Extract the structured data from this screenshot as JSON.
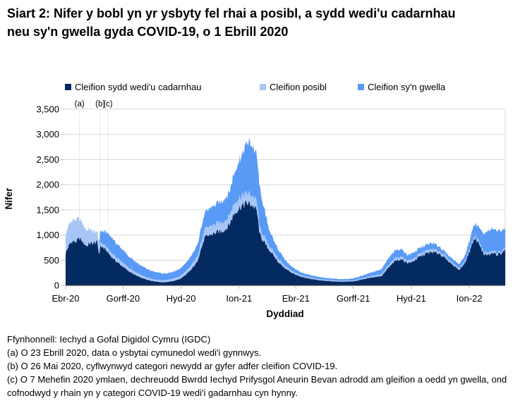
{
  "title": "Siart 2: Nifer y bobl yn yr ysbyty fel rhai a posibl, a sydd wedi'u cadarnhau neu sy'n gwella gyda COVID-19, o 1 Ebrill 2020",
  "legend": [
    {
      "label": "Cleifion sydd wedi'u cadarnhau",
      "color": "#042A62"
    },
    {
      "label": "Cleifion posibl",
      "color": "#A8C6F5"
    },
    {
      "label": "Cleifion sy'n gwella",
      "color": "#589AF6"
    }
  ],
  "chart_data": {
    "type": "area",
    "stacked": true,
    "title": "Siart 2: Nifer y bobl yn yr ysbyty fel rhai a posibl, a sydd wedi'u cadarnhau neu sy'n gwella gyda COVID-19, o 1 Ebrill 2020",
    "xlabel": "Dyddiad",
    "ylabel": "Nifer",
    "ylim": [
      0,
      3500
    ],
    "grid": true,
    "legend_position": "top",
    "x_start_date": "2020-04-01",
    "x_end_date": "2022-02-26",
    "x_max_day": 697,
    "y_tick_labels": [
      "0",
      "500",
      "1,000",
      "1,500",
      "2,000",
      "2,500",
      "3,000",
      "3,500"
    ],
    "x_ticks": [
      {
        "day": 0,
        "label": "Ebr-20"
      },
      {
        "day": 91,
        "label": "Gorff-20"
      },
      {
        "day": 183,
        "label": "Hyd-20"
      },
      {
        "day": 275,
        "label": "Ion-21"
      },
      {
        "day": 365,
        "label": "Ebr-21"
      },
      {
        "day": 456,
        "label": "Gorff-21"
      },
      {
        "day": 548,
        "label": "Hyd-21"
      },
      {
        "day": 640,
        "label": "Ion-22"
      }
    ],
    "annotations": [
      {
        "label": "(a)",
        "day": 22,
        "date": "2020-04-23"
      },
      {
        "label": "(b)",
        "day": 55,
        "date": "2020-05-26"
      },
      {
        "label": "(c)",
        "day": 67,
        "date": "2020-06-07"
      }
    ],
    "sample_days": [
      0,
      4,
      8,
      12,
      16,
      19,
      22,
      26,
      30,
      34,
      38,
      42,
      46,
      50,
      53,
      55,
      58,
      61,
      64,
      67,
      71,
      75,
      80,
      85,
      91,
      97,
      104,
      111,
      118,
      122,
      130,
      139,
      148,
      153,
      160,
      168,
      176,
      183,
      190,
      197,
      204,
      208,
      214,
      221,
      228,
      235,
      241,
      248,
      254,
      260,
      266,
      271,
      276,
      281,
      285,
      288,
      293,
      298,
      303,
      308,
      315,
      322,
      329,
      337,
      344,
      351,
      359,
      365,
      372,
      380,
      389,
      397,
      407,
      417,
      426,
      436,
      446,
      456,
      466,
      476,
      487,
      494,
      501,
      512,
      523,
      532,
      542,
      549,
      560,
      571,
      581,
      593,
      602,
      613,
      624,
      633,
      641,
      646,
      650,
      656,
      663,
      670,
      677,
      684,
      690,
      697
    ],
    "series": [
      {
        "name": "Cleifion sydd wedi'u cadarnhau",
        "color": "#042A62",
        "values": [
          640,
          760,
          850,
          880,
          860,
          900,
          935,
          880,
          820,
          780,
          840,
          830,
          850,
          860,
          620,
          780,
          760,
          730,
          700,
          660,
          590,
          540,
          480,
          430,
          370,
          310,
          250,
          200,
          160,
          140,
          110,
          85,
          70,
          62,
          68,
          80,
          105,
          140,
          205,
          280,
          390,
          450,
          700,
          950,
          1000,
          1030,
          1060,
          1080,
          1120,
          1220,
          1400,
          1480,
          1550,
          1590,
          1620,
          1635,
          1615,
          1570,
          1490,
          1000,
          850,
          720,
          600,
          470,
          380,
          310,
          250,
          210,
          170,
          150,
          130,
          110,
          95,
          85,
          78,
          72,
          75,
          82,
          105,
          135,
          160,
          175,
          185,
          350,
          490,
          520,
          450,
          460,
          560,
          630,
          660,
          630,
          535,
          420,
          305,
          445,
          700,
          870,
          930,
          800,
          620,
          600,
          640,
          610,
          630,
          700
        ]
      },
      {
        "name": "Cleifion posibl",
        "color": "#A8C6F5",
        "values": [
          380,
          400,
          410,
          420,
          430,
          420,
          395,
          370,
          340,
          310,
          280,
          250,
          220,
          170,
          250,
          70,
          65,
          70,
          70,
          75,
          80,
          80,
          80,
          80,
          80,
          70,
          65,
          60,
          55,
          50,
          45,
          40,
          40,
          38,
          40,
          45,
          50,
          60,
          70,
          80,
          95,
          100,
          130,
          160,
          170,
          175,
          180,
          180,
          185,
          185,
          195,
          200,
          200,
          200,
          200,
          195,
          190,
          185,
          180,
          130,
          110,
          90,
          80,
          70,
          60,
          50,
          40,
          35,
          30,
          28,
          25,
          22,
          20,
          20,
          18,
          18,
          18,
          20,
          22,
          25,
          30,
          35,
          40,
          50,
          55,
          55,
          50,
          50,
          50,
          55,
          55,
          50,
          45,
          40,
          35,
          40,
          45,
          50,
          55,
          50,
          45,
          45,
          45,
          40,
          40,
          40
        ]
      },
      {
        "name": "Cleifion sy'n gwella",
        "color": "#589AF6",
        "values": [
          0,
          0,
          0,
          0,
          0,
          0,
          0,
          0,
          0,
          0,
          0,
          0,
          0,
          0,
          0,
          230,
          245,
          260,
          280,
          290,
          310,
          300,
          280,
          265,
          250,
          235,
          220,
          205,
          190,
          185,
          165,
          150,
          140,
          135,
          130,
          135,
          140,
          150,
          160,
          180,
          205,
          220,
          280,
          320,
          350,
          375,
          400,
          420,
          445,
          475,
          600,
          670,
          750,
          850,
          950,
          1020,
          1015,
          975,
          920,
          770,
          530,
          330,
          240,
          180,
          140,
          100,
          80,
          70,
          60,
          52,
          50,
          45,
          40,
          38,
          35,
          32,
          33,
          38,
          48,
          60,
          75,
          88,
          100,
          135,
          155,
          150,
          105,
          120,
          120,
          115,
          125,
          90,
          75,
          75,
          80,
          100,
          180,
          230,
          235,
          280,
          360,
          430,
          450,
          440,
          420,
          380
        ]
      }
    ]
  },
  "footnotes": {
    "source": "Ffynhonnell: Iechyd a Gofal Digidol Cymru (IGDC)",
    "notes": [
      "(a) O 23 Ebrill 2020, data o ysbytai cymunedol wedi'i gynnwys.",
      "(b) O 26 Mai 2020, cyflwynwyd categori newydd ar gyfer adfer cleifion COVID-19.",
      "(c) O 7 Mehefin 2020 ymlaen, dechreuodd Bwrdd Iechyd Prifysgol Aneurin Bevan adrodd am gleifion a oedd yn gwella, ond cofnodwyd y rhain yn y categori COVID-19 wedi'i gadarnhau cyn hynny."
    ]
  }
}
